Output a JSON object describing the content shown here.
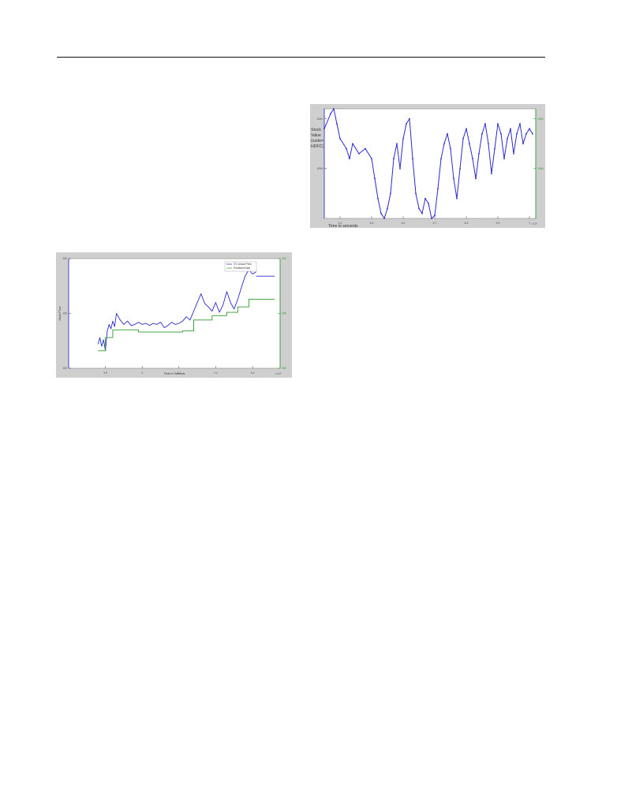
{
  "chart_data": [
    {
      "type": "line",
      "title": "",
      "ylabel": "Stock Value (code= HDFC)",
      "ylabel_lines": [
        "Stock",
        "Value",
        "(code=",
        "HDFC)"
      ],
      "xlabel": "Time in seconds",
      "x_exponent": "x 10⁴",
      "xticks": [
        "6.4",
        "6.5",
        "6.6",
        "6.7",
        "6.8",
        "6.9",
        "7"
      ],
      "yticks_left": [
        "1060",
        "1055"
      ],
      "yticks_right": [
        "1060",
        "1055"
      ],
      "xlim": [
        6.35,
        7.02
      ],
      "ylim": [
        1050,
        1061
      ],
      "grid": false,
      "colors": {
        "series": "#2a2ad0",
        "axis_right": "#2d9a2d",
        "frame": "#cfcfcf"
      },
      "series": [
        {
          "color": "#2a2ad0",
          "x": [
            6.35,
            6.37,
            6.38,
            6.39,
            6.4,
            6.42,
            6.43,
            6.44,
            6.46,
            6.48,
            6.5,
            6.51,
            6.52,
            6.53,
            6.54,
            6.55,
            6.56,
            6.57,
            6.58,
            6.59,
            6.6,
            6.61,
            6.62,
            6.63,
            6.64,
            6.65,
            6.66,
            6.67,
            6.68,
            6.69,
            6.7,
            6.71,
            6.72,
            6.73,
            6.74,
            6.75,
            6.76,
            6.77,
            6.78,
            6.79,
            6.8,
            6.81,
            6.82,
            6.83,
            6.84,
            6.85,
            6.86,
            6.87,
            6.88,
            6.89,
            6.9,
            6.91,
            6.92,
            6.93,
            6.94,
            6.95,
            6.96,
            6.97,
            6.98,
            6.99,
            7.0,
            7.01
          ],
          "y": [
            1059.0,
            1060.5,
            1061.0,
            1059.5,
            1058.0,
            1057.0,
            1056.0,
            1057.5,
            1056.5,
            1057.0,
            1056.0,
            1054.0,
            1052.0,
            1050.5,
            1050.0,
            1051.0,
            1052.5,
            1056.0,
            1057.5,
            1055.0,
            1058.0,
            1059.5,
            1060.0,
            1056.0,
            1052.5,
            1051.0,
            1050.5,
            1052.0,
            1051.5,
            1050.0,
            1050.3,
            1053.0,
            1056.0,
            1057.5,
            1058.5,
            1057.0,
            1054.0,
            1052.0,
            1055.0,
            1058.0,
            1059.0,
            1057.5,
            1056.0,
            1054.0,
            1056.5,
            1058.5,
            1059.5,
            1057.5,
            1054.5,
            1057.0,
            1059.5,
            1058.5,
            1056.0,
            1058.0,
            1059.0,
            1056.5,
            1058.5,
            1059.5,
            1057.5,
            1058.5,
            1059.0,
            1058.5
          ]
        }
      ]
    },
    {
      "type": "line",
      "title": "",
      "xlabel": "Time in Seconds",
      "ylabel": "Stock Price",
      "x_exponent": "x 10⁴",
      "xticks": [
        "3.8",
        "4",
        "4.2",
        "4.4",
        "4.6"
      ],
      "yticks_left": [
        "190",
        "185",
        "180"
      ],
      "yticks_right": [
        "190",
        "185",
        "180"
      ],
      "xlim": [
        3.6,
        4.75
      ],
      "ylim": [
        180,
        190
      ],
      "legend": "top-right",
      "grid": false,
      "colors": {
        "actual": "#2a2ad0",
        "predicted": "#2d9a2d",
        "frame": "#cfcfcf"
      },
      "series": [
        {
          "name": "ITC Actual Price",
          "color": "#2a2ad0",
          "x": [
            3.76,
            3.77,
            3.78,
            3.79,
            3.8,
            3.81,
            3.82,
            3.83,
            3.84,
            3.85,
            3.86,
            3.88,
            3.9,
            3.92,
            3.94,
            3.96,
            3.98,
            4.0,
            4.02,
            4.04,
            4.06,
            4.08,
            4.1,
            4.12,
            4.14,
            4.16,
            4.18,
            4.2,
            4.22,
            4.24,
            4.26,
            4.28,
            4.3,
            4.32,
            4.34,
            4.36,
            4.38,
            4.4,
            4.42,
            4.44,
            4.46,
            4.48,
            4.5,
            4.52,
            4.54,
            4.56,
            4.58,
            4.6,
            4.62
          ],
          "y": [
            182.2,
            182.8,
            182.0,
            182.6,
            181.6,
            183.4,
            184.0,
            183.6,
            184.3,
            183.8,
            185.0,
            184.4,
            184.0,
            184.3,
            183.9,
            184.0,
            184.2,
            184.0,
            184.1,
            183.9,
            184.1,
            184.0,
            184.2,
            183.7,
            183.9,
            184.2,
            184.0,
            184.1,
            184.3,
            184.7,
            184.4,
            185.2,
            186.0,
            186.8,
            185.9,
            185.6,
            185.2,
            186.0,
            185.1,
            185.8,
            187.0,
            186.0,
            185.4,
            186.3,
            187.4,
            188.4,
            189.0,
            188.6,
            188.8
          ]
        },
        {
          "name": "Predicted Data",
          "color": "#2d9a2d",
          "x": [
            3.76,
            3.8,
            3.8,
            3.84,
            3.84,
            3.98,
            3.98,
            4.22,
            4.22,
            4.28,
            4.28,
            4.38,
            4.38,
            4.46,
            4.46,
            4.52,
            4.52,
            4.58,
            4.58,
            4.72
          ],
          "y": [
            181.6,
            181.6,
            182.8,
            182.8,
            183.5,
            183.5,
            183.3,
            183.3,
            183.4,
            183.4,
            184.4,
            184.4,
            184.8,
            184.8,
            185.1,
            185.1,
            185.6,
            185.6,
            186.3,
            186.3
          ]
        },
        {
          "name": "",
          "color": "#2a2ad0",
          "x": [
            4.62,
            4.72
          ],
          "y": [
            188.4,
            188.4
          ]
        }
      ]
    }
  ]
}
